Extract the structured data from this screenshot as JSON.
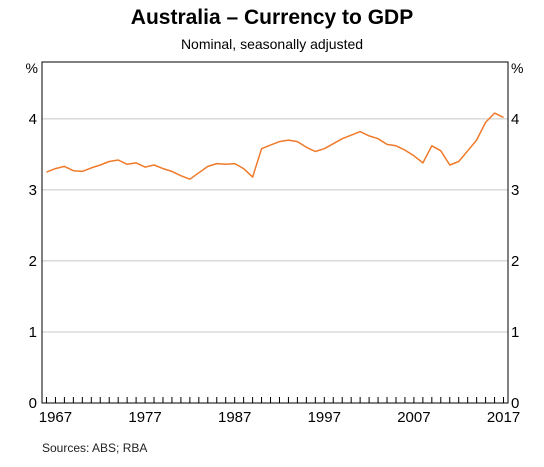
{
  "chart_data": {
    "type": "line",
    "title": "Australia – Currency to GDP",
    "subtitle": "Nominal, seasonally adjusted",
    "ylabel_left": "%",
    "ylabel_right": "%",
    "ylim": [
      0,
      4.8
    ],
    "yticks": [
      0,
      1,
      2,
      3,
      4
    ],
    "xlim": [
      1965.5,
      2017.5
    ],
    "xticks": [
      1967,
      1977,
      1987,
      1997,
      2007,
      2017
    ],
    "grid": true,
    "line_color": "#f07a2a",
    "series": [
      {
        "x": [
          1966,
          1967,
          1968,
          1969,
          1970,
          1971,
          1972,
          1973,
          1974,
          1975,
          1976,
          1977,
          1978,
          1979,
          1980,
          1981,
          1982,
          1983,
          1984,
          1985,
          1986,
          1987,
          1988,
          1989,
          1990,
          1991,
          1992,
          1993,
          1994,
          1995,
          1996,
          1997,
          1998,
          1999,
          2000,
          2001,
          2002,
          2003,
          2004,
          2005,
          2006,
          2007,
          2008,
          2009,
          2010,
          2011,
          2012,
          2013,
          2014,
          2015,
          2016,
          2017
        ],
        "y": [
          3.25,
          3.3,
          3.33,
          3.27,
          3.26,
          3.31,
          3.35,
          3.4,
          3.42,
          3.36,
          3.38,
          3.32,
          3.35,
          3.3,
          3.26,
          3.2,
          3.15,
          3.24,
          3.33,
          3.37,
          3.36,
          3.37,
          3.3,
          3.18,
          3.58,
          3.63,
          3.68,
          3.7,
          3.68,
          3.6,
          3.54,
          3.58,
          3.65,
          3.72,
          3.77,
          3.82,
          3.76,
          3.72,
          3.64,
          3.62,
          3.56,
          3.48,
          3.38,
          3.62,
          3.55,
          3.35,
          3.4,
          3.55,
          3.7,
          3.95,
          4.08,
          4.02
        ]
      }
    ]
  },
  "sources": "Sources:  ABS; RBA"
}
